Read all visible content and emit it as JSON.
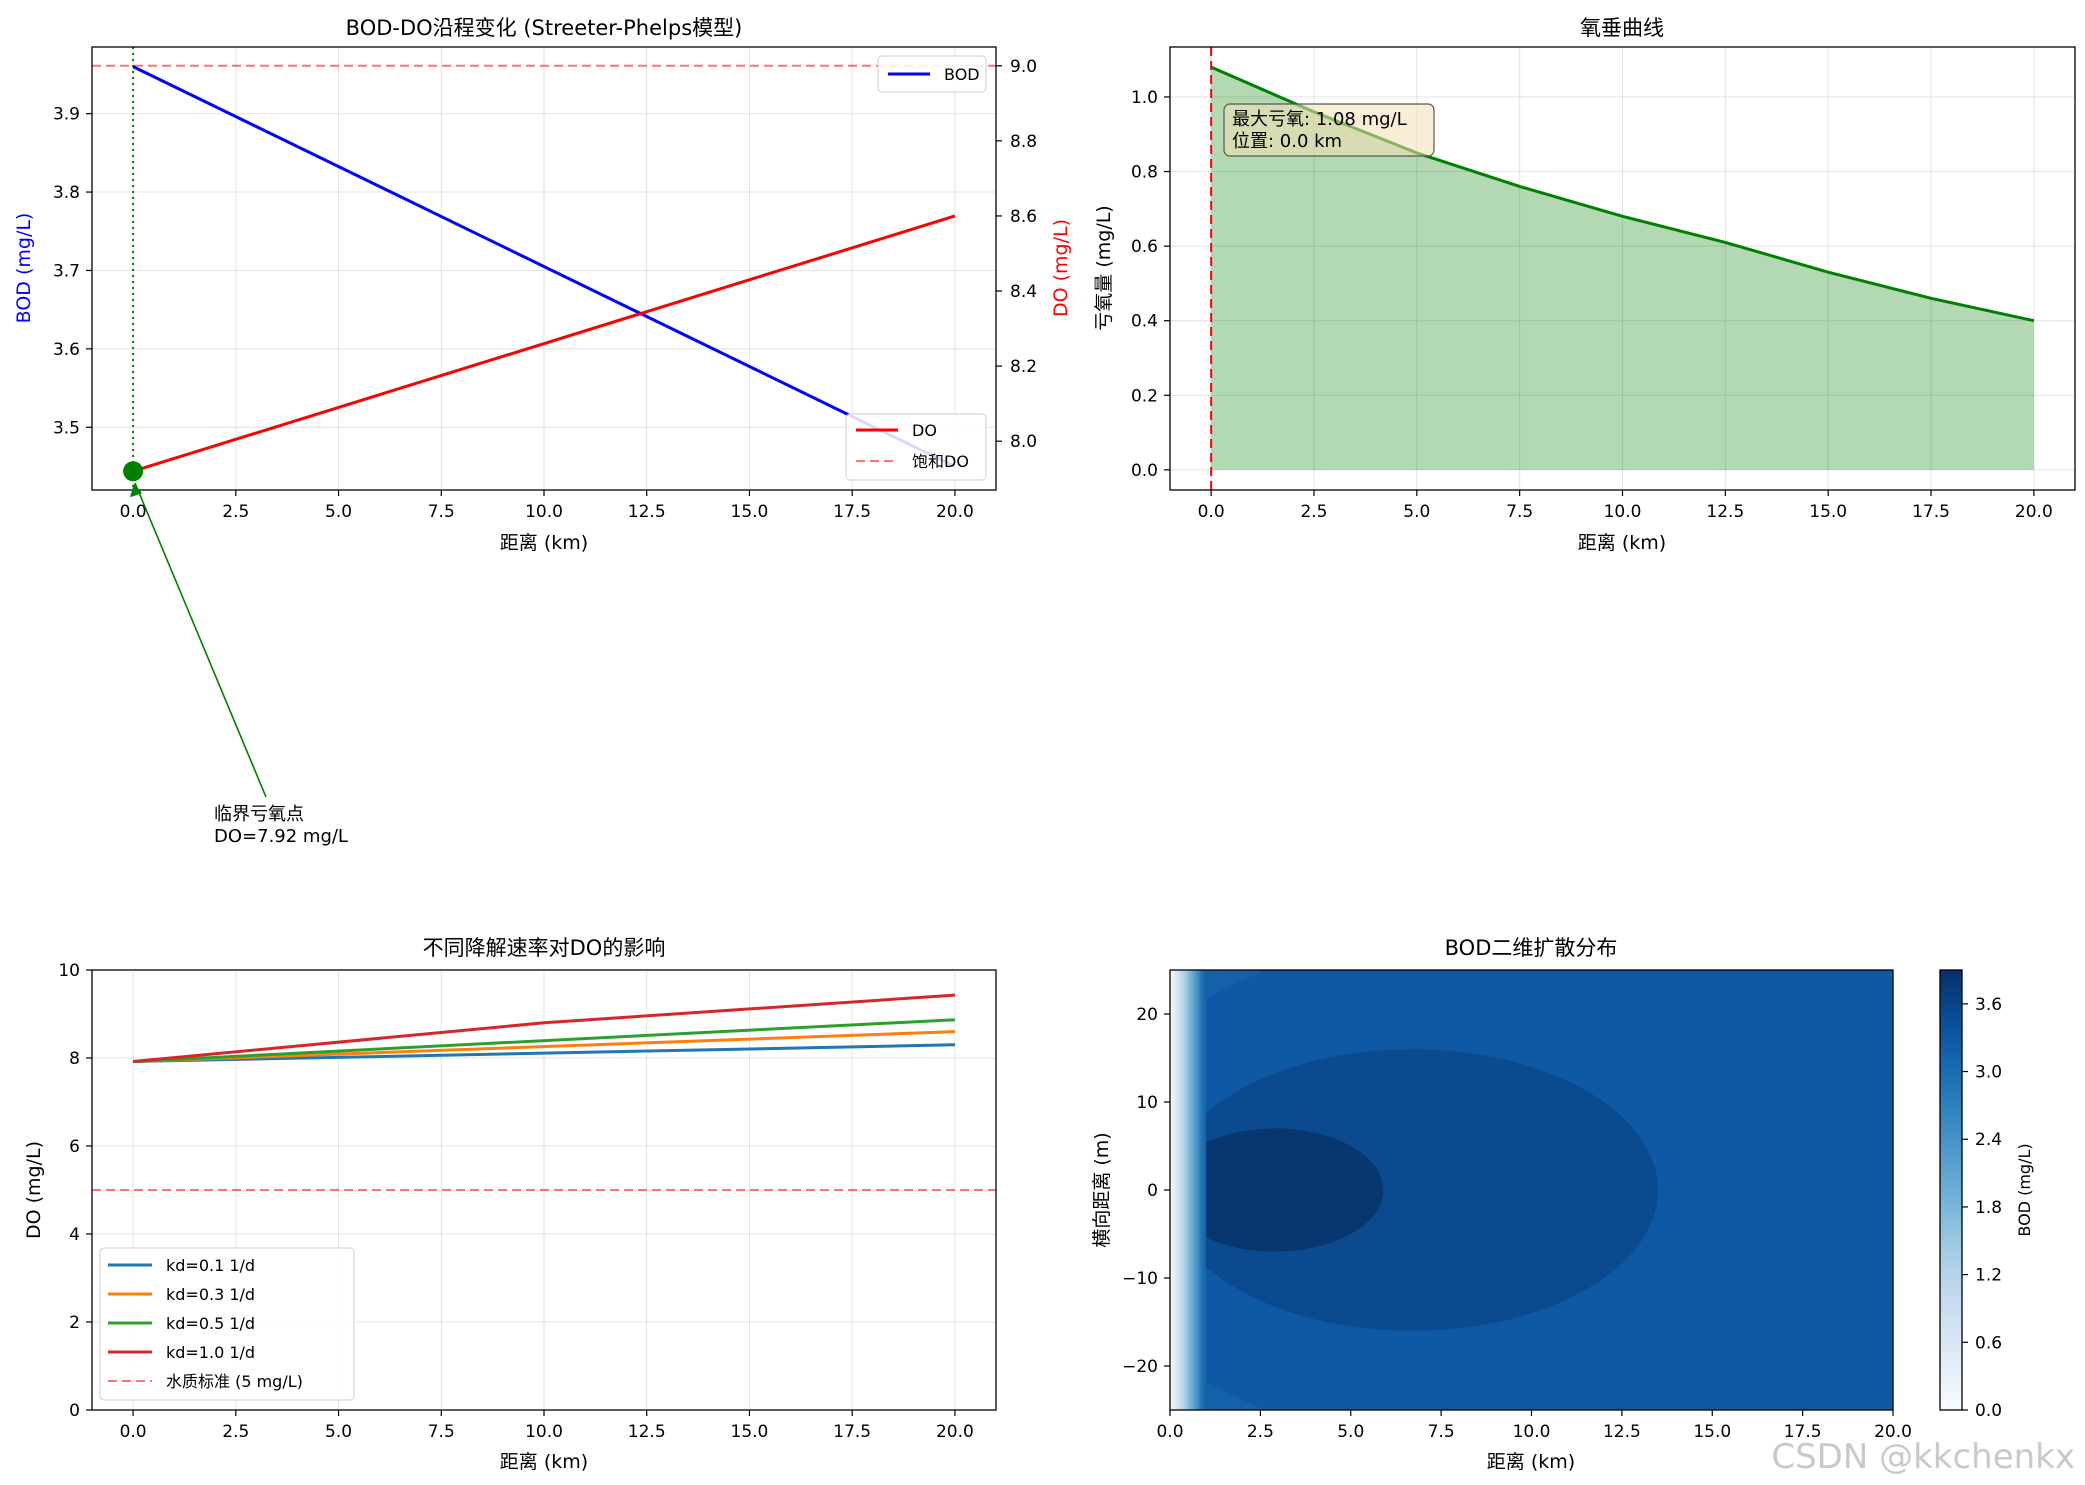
{
  "chart_data": [
    {
      "id": "p1",
      "type": "line",
      "title": "BOD-DO沿程变化 (Streeter-Phelps模型)",
      "xlabel": "距离 (km)",
      "ylabel_left": "BOD (mg/L)",
      "ylabel_right": "DO (mg/L)",
      "xlim": [
        -1,
        21
      ],
      "ylim_left": [
        3.42,
        3.985
      ],
      "ylim_right": [
        7.87,
        9.05
      ],
      "xticks": [
        0.0,
        2.5,
        5.0,
        7.5,
        10.0,
        12.5,
        15.0,
        17.5,
        20.0
      ],
      "xtick_labels": [
        "0.0",
        "2.5",
        "5.0",
        "7.5",
        "10.0",
        "12.5",
        "15.0",
        "17.5",
        "20.0"
      ],
      "yticks_left": [
        3.5,
        3.6,
        3.7,
        3.8,
        3.9
      ],
      "ytick_labels_left": [
        "3.5",
        "3.6",
        "3.7",
        "3.8",
        "3.9"
      ],
      "yticks_right": [
        8.0,
        8.2,
        8.4,
        8.6,
        8.8,
        9.0
      ],
      "ytick_labels_right": [
        "8.0",
        "8.2",
        "8.4",
        "8.6",
        "8.8",
        "9.0"
      ],
      "series": [
        {
          "name": "BOD",
          "axis": "left",
          "color": "#0000ff",
          "x": [
            0,
            20
          ],
          "y": [
            3.96,
            3.45
          ]
        },
        {
          "name": "DO",
          "axis": "right",
          "color": "#ff0000",
          "x": [
            0,
            20
          ],
          "y": [
            7.92,
            8.6
          ]
        },
        {
          "name": "饱和DO",
          "axis": "right",
          "color": "#ff0000",
          "style": "dashed",
          "y_const": 9.0
        }
      ],
      "critical_point": {
        "x": 0.0,
        "do": 7.92,
        "color": "#008000"
      },
      "annotation": {
        "line1": "临界亏氧点",
        "line2": "DO=7.92 mg/L"
      }
    },
    {
      "id": "p2",
      "type": "area",
      "title": "氧垂曲线",
      "xlabel": "距离 (km)",
      "ylabel": "亏氧量 (mg/L)",
      "xlim": [
        -1,
        21
      ],
      "ylim": [
        -0.054,
        1.134
      ],
      "xticks": [
        0.0,
        2.5,
        5.0,
        7.5,
        10.0,
        12.5,
        15.0,
        17.5,
        20.0
      ],
      "xtick_labels": [
        "0.0",
        "2.5",
        "5.0",
        "7.5",
        "10.0",
        "12.5",
        "15.0",
        "17.5",
        "20.0"
      ],
      "yticks": [
        0.0,
        0.2,
        0.4,
        0.6,
        0.8,
        1.0
      ],
      "ytick_labels": [
        "0.0",
        "0.2",
        "0.4",
        "0.6",
        "0.8",
        "1.0"
      ],
      "series": [
        {
          "name": "亏氧量",
          "color": "#008000",
          "x": [
            0,
            2.5,
            5,
            7.5,
            10,
            12.5,
            15,
            17.5,
            20
          ],
          "y": [
            1.08,
            0.96,
            0.85,
            0.76,
            0.68,
            0.61,
            0.53,
            0.46,
            0.4
          ]
        }
      ],
      "critical_x": 0.0,
      "info_line1": "最大亏氧: 1.08 mg/L",
      "info_line2": "位置: 0.0 km"
    },
    {
      "id": "p3",
      "type": "line",
      "title": "不同降解速率对DO的影响",
      "xlabel": "距离 (km)",
      "ylabel": "DO (mg/L)",
      "xlim": [
        -1,
        21
      ],
      "ylim": [
        0,
        10
      ],
      "xticks": [
        0.0,
        2.5,
        5.0,
        7.5,
        10.0,
        12.5,
        15.0,
        17.5,
        20.0
      ],
      "xtick_labels": [
        "0.0",
        "2.5",
        "5.0",
        "7.5",
        "10.0",
        "12.5",
        "15.0",
        "17.5",
        "20.0"
      ],
      "yticks": [
        0,
        2,
        4,
        6,
        8,
        10
      ],
      "ytick_labels": [
        "0",
        "2",
        "4",
        "6",
        "8",
        "10"
      ],
      "series": [
        {
          "name": "kd=0.1 1/d",
          "color": "#1f77b4",
          "x": [
            0,
            20
          ],
          "y": [
            7.92,
            8.3
          ]
        },
        {
          "name": "kd=0.3 1/d",
          "color": "#ff7f0e",
          "x": [
            0,
            20
          ],
          "y": [
            7.92,
            8.6
          ]
        },
        {
          "name": "kd=0.5 1/d",
          "color": "#2ca02c",
          "x": [
            0,
            20
          ],
          "y": [
            7.92,
            8.87
          ]
        },
        {
          "name": "kd=1.0 1/d",
          "color": "#d62728",
          "x": [
            0,
            10,
            20
          ],
          "y": [
            7.92,
            8.8,
            9.43
          ]
        }
      ],
      "standard": {
        "name": "水质标准 (5 mg/L)",
        "value": 5,
        "color": "#ff0000"
      }
    },
    {
      "id": "p4",
      "type": "heatmap",
      "title": "BOD二维扩散分布",
      "xlabel": "距离 (km)",
      "ylabel": "横向距离 (m)",
      "xlim": [
        0,
        20
      ],
      "ylim": [
        -25,
        25
      ],
      "xticks": [
        0.0,
        2.5,
        5.0,
        7.5,
        10.0,
        12.5,
        15.0,
        17.5,
        20.0
      ],
      "xtick_labels": [
        "0.0",
        "2.5",
        "5.0",
        "7.5",
        "10.0",
        "12.5",
        "15.0",
        "17.5",
        "20.0"
      ],
      "yticks": [
        -20,
        -10,
        0,
        10,
        20
      ],
      "ytick_labels": [
        "−20",
        "−10",
        "0",
        "10",
        "20"
      ],
      "colorbar": {
        "label": "BOD (mg/L)",
        "range": [
          0,
          3.9
        ],
        "ticks": [
          0.0,
          0.6,
          1.2,
          1.8,
          2.4,
          3.0,
          3.6
        ],
        "tick_labels": [
          "0.0",
          "0.6",
          "1.2",
          "1.8",
          "2.4",
          "3.0",
          "3.6"
        ],
        "cmap": [
          "#f7fbff",
          "#deebf7",
          "#c6dbef",
          "#9ecae1",
          "#6baed6",
          "#4292c6",
          "#2171b5",
          "#08519c",
          "#08306b"
        ]
      },
      "contours": [
        {
          "cx": 2.9,
          "cy": 0,
          "rx_km": 3.0,
          "ry_m": 7,
          "value": 3.75
        },
        {
          "cx": 6.7,
          "cy": 0,
          "rx_km": 6.8,
          "ry_m": 16,
          "value": 3.55
        },
        {
          "cx": 12.0,
          "cy": 0,
          "rx_km": 15.0,
          "ry_m": 32,
          "value": 3.4
        }
      ],
      "background_value": 3.3
    }
  ],
  "watermark": "CSDN @kkchenkx"
}
